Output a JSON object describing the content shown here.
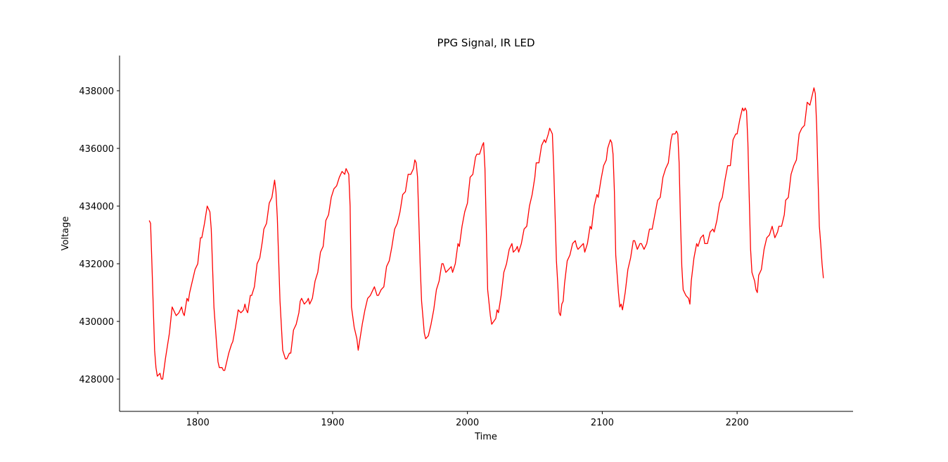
{
  "chart_data": {
    "type": "line",
    "title": "PPG Signal, IR LED",
    "xlabel": "Time",
    "ylabel": "Voltage",
    "x": [
      1764,
      1765,
      1766,
      1768,
      1769,
      1770,
      1772,
      1773,
      1774,
      1776,
      1777,
      1779,
      1781,
      1784,
      1786,
      1788,
      1789,
      1790,
      1792,
      1793,
      1794,
      1798,
      1800,
      1802,
      1803,
      1805,
      1807,
      1809,
      1810,
      1812,
      1814,
      1815,
      1816,
      1818,
      1819,
      1820,
      1823,
      1825,
      1826,
      1828,
      1830,
      1832,
      1834,
      1835,
      1836,
      1837,
      1839,
      1840,
      1842,
      1844,
      1846,
      1848,
      1849,
      1851,
      1853,
      1855,
      1857,
      1858,
      1859,
      1861,
      1863,
      1865,
      1866,
      1868,
      1869,
      1871,
      1873,
      1875,
      1876,
      1877,
      1879,
      1881,
      1882,
      1883,
      1885,
      1887,
      1889,
      1891,
      1893,
      1895,
      1897,
      1899,
      1901,
      1903,
      1905,
      1907,
      1909,
      1910,
      1912,
      1913,
      1914,
      1916,
      1918,
      1919,
      1920,
      1922,
      1924,
      1926,
      1928,
      1930,
      1931,
      1933,
      1934,
      1936,
      1938,
      1940,
      1942,
      1944,
      1946,
      1948,
      1950,
      1952,
      1954,
      1956,
      1958,
      1960,
      1961,
      1962,
      1963,
      1965,
      1966,
      1968,
      1969,
      1971,
      1973,
      1975,
      1977,
      1979,
      1981,
      1982,
      1984,
      1986,
      1988,
      1989,
      1991,
      1993,
      1994,
      1996,
      1998,
      2000,
      2002,
      2004,
      2006,
      2007,
      2009,
      2011,
      2012,
      2013,
      2015,
      2017,
      2018,
      2021,
      2022,
      2023,
      2025,
      2027,
      2029,
      2031,
      2033,
      2034,
      2036,
      2037,
      2038,
      2040,
      2042,
      2044,
      2046,
      2048,
      2050,
      2051,
      2053,
      2055,
      2057,
      2058,
      2060,
      2061,
      2063,
      2064,
      2066,
      2067,
      2068,
      2069,
      2070,
      2071,
      2072,
      2074,
      2076,
      2078,
      2080,
      2081,
      2082,
      2084,
      2086,
      2087,
      2089,
      2091,
      2092,
      2094,
      2096,
      2097,
      2099,
      2101,
      2103,
      2104,
      2106,
      2107,
      2108,
      2109,
      2110,
      2112,
      2113,
      2114,
      2115,
      2117,
      2119,
      2121,
      2123,
      2124,
      2126,
      2128,
      2129,
      2131,
      2133,
      2135,
      2137,
      2139,
      2141,
      2143,
      2145,
      2147,
      2149,
      2151,
      2152,
      2154,
      2155,
      2156,
      2157,
      2158,
      2159,
      2160,
      2162,
      2164,
      2165,
      2166,
      2168,
      2170,
      2171,
      2173,
      2175,
      2176,
      2178,
      2180,
      2182,
      2183,
      2185,
      2187,
      2189,
      2191,
      2193,
      2195,
      2197,
      2199,
      2200,
      2202,
      2204,
      2205,
      2206,
      2207,
      2208,
      2209,
      2210,
      2211,
      2213,
      2214,
      2215,
      2216,
      2218,
      2220,
      2222,
      2224,
      2226,
      2228,
      2230,
      2231,
      2233,
      2235,
      2236,
      2238,
      2240,
      2242,
      2244,
      2246,
      2248,
      2250,
      2252,
      2254,
      2256,
      2257,
      2258,
      2259,
      2260,
      2261,
      2262,
      2263,
      2264
    ],
    "series": [
      {
        "color": "#ff0000",
        "values": [
          433500,
          433400,
          432000,
          429000,
          428400,
          428100,
          428200,
          428000,
          428000,
          428700,
          429000,
          429600,
          430500,
          430200,
          430300,
          430500,
          430300,
          430200,
          430800,
          430700,
          431000,
          431800,
          432000,
          432900,
          432900,
          433400,
          434000,
          433800,
          433200,
          430500,
          429200,
          428600,
          428400,
          428400,
          428300,
          428300,
          428900,
          429200,
          429300,
          429800,
          430400,
          430300,
          430400,
          430600,
          430400,
          430300,
          430900,
          430900,
          431200,
          432000,
          432200,
          432800,
          433200,
          433400,
          434100,
          434300,
          434900,
          434500,
          433600,
          430700,
          429000,
          428700,
          428700,
          428900,
          428900,
          429700,
          429900,
          430300,
          430700,
          430800,
          430600,
          430700,
          430800,
          430600,
          430800,
          431400,
          431700,
          432400,
          432600,
          433500,
          433700,
          434300,
          434600,
          434700,
          435000,
          435200,
          435100,
          435300,
          435100,
          434000,
          430500,
          429800,
          429400,
          429000,
          429300,
          429900,
          430400,
          430800,
          430900,
          431100,
          431200,
          430900,
          430900,
          431100,
          431200,
          431900,
          432100,
          432600,
          433200,
          433400,
          433800,
          434400,
          434500,
          435100,
          435100,
          435300,
          435600,
          435500,
          435000,
          431900,
          430700,
          429600,
          429400,
          429500,
          429900,
          430400,
          431100,
          431400,
          432000,
          432000,
          431700,
          431800,
          431900,
          431700,
          432000,
          432700,
          432600,
          433300,
          433800,
          434100,
          435000,
          435100,
          435700,
          435800,
          435800,
          436100,
          436200,
          435300,
          431100,
          430200,
          429900,
          430100,
          430400,
          430300,
          430900,
          431700,
          432000,
          432500,
          432700,
          432400,
          432500,
          432600,
          432400,
          432700,
          433200,
          433300,
          434000,
          434400,
          435000,
          435500,
          435500,
          436100,
          436300,
          436200,
          436500,
          436700,
          436500,
          435300,
          432100,
          431300,
          430300,
          430200,
          430600,
          430700,
          431300,
          432100,
          432300,
          432700,
          432800,
          432600,
          432500,
          432600,
          432700,
          432400,
          432700,
          433300,
          433200,
          434000,
          434400,
          434300,
          434900,
          435400,
          435600,
          436000,
          436300,
          436200,
          435800,
          434500,
          432300,
          431000,
          430500,
          430600,
          430400,
          431000,
          431800,
          432200,
          432800,
          432800,
          432500,
          432700,
          432700,
          432500,
          432700,
          433200,
          433200,
          433700,
          434200,
          434300,
          435000,
          435300,
          435500,
          436300,
          436500,
          436500,
          436600,
          436500,
          435500,
          433500,
          431900,
          431100,
          430900,
          430800,
          430600,
          431400,
          432200,
          432700,
          432600,
          432900,
          433000,
          432700,
          432700,
          433100,
          433200,
          433100,
          433500,
          434100,
          434300,
          434900,
          435400,
          435400,
          436300,
          436500,
          436500,
          437000,
          437400,
          437300,
          437400,
          437300,
          436200,
          434300,
          432500,
          431700,
          431400,
          431100,
          431000,
          431600,
          431800,
          432500,
          432900,
          433000,
          433300,
          432900,
          433100,
          433300,
          433300,
          433700,
          434200,
          434300,
          435100,
          435400,
          435600,
          436500,
          436700,
          436800,
          437600,
          437500,
          437900,
          438100,
          437900,
          436800,
          435000,
          433300,
          432700,
          432000,
          431500
        ]
      }
    ],
    "xlim": [
      1742,
      2286
    ],
    "ylim": [
      426880,
      439220
    ],
    "xticks": [
      1800,
      1900,
      2000,
      2100,
      2200
    ],
    "yticks": [
      428000,
      430000,
      432000,
      434000,
      436000,
      438000
    ],
    "grid": false
  }
}
